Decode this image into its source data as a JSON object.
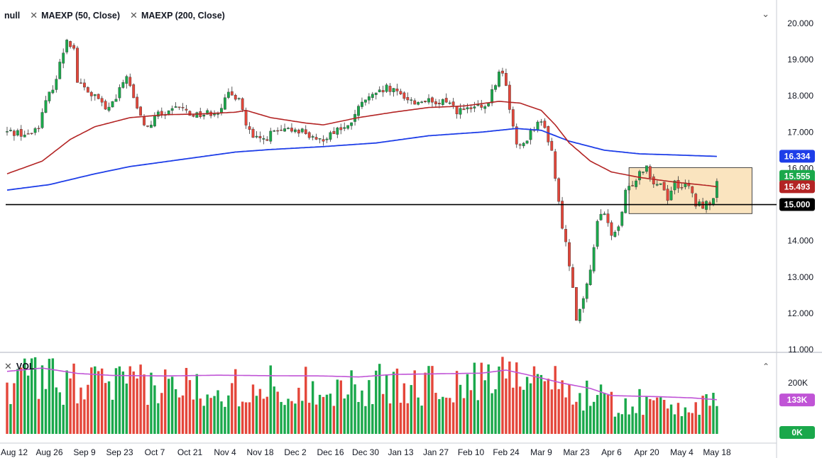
{
  "legend": {
    "items": [
      {
        "label": "null"
      },
      {
        "label": "MAEXP (50, Close)"
      },
      {
        "label": "MAEXP (200, Close)"
      }
    ],
    "volume_label": "VOL"
  },
  "icons": {
    "close": "close-icon",
    "collapse": "chevron-down-icon",
    "expand": "chevron-up-icon"
  },
  "colors": {
    "up": "#1aa84b",
    "down": "#e4463a",
    "ema50": "#b32424",
    "ema200": "#1e3ee8",
    "vol_ma": "#c054d6",
    "hline": "#000000",
    "box_fill": "#f9dfb4",
    "box_stroke": "#444444"
  },
  "chart_data": {
    "type": "candlestick",
    "price_axis": {
      "min": 11.0,
      "max": 20.0,
      "ticks": [
        "20.000",
        "19.000",
        "18.000",
        "17.000",
        "16.000",
        "15.000",
        "14.000",
        "13.000",
        "12.000",
        "11.000"
      ]
    },
    "time_axis": {
      "ticks": [
        "Aug 12",
        "Aug 26",
        "Sep 9",
        "Sep 23",
        "Oct 7",
        "Oct 21",
        "Nov 4",
        "Nov 18",
        "Dec 2",
        "Dec 16",
        "Dec 30",
        "Jan 13",
        "Jan 27",
        "Feb 10",
        "Feb 24",
        "Mar 9",
        "Mar 23",
        "Apr 6",
        "Apr 20",
        "May 4",
        "May 18"
      ]
    },
    "price_anchors": [
      [
        0,
        17.0
      ],
      [
        3,
        17.0
      ],
      [
        6,
        16.9
      ],
      [
        9,
        17.2
      ],
      [
        11,
        17.8
      ],
      [
        14,
        18.5
      ],
      [
        17,
        19.6
      ],
      [
        19,
        19.3
      ],
      [
        20,
        18.4
      ],
      [
        23,
        18.1
      ],
      [
        26,
        17.9
      ],
      [
        28,
        17.6
      ],
      [
        31,
        17.9
      ],
      [
        34,
        18.6
      ],
      [
        36,
        17.9
      ],
      [
        38,
        17.4
      ],
      [
        40,
        17.1
      ],
      [
        43,
        17.5
      ],
      [
        46,
        17.5
      ],
      [
        49,
        17.7
      ],
      [
        52,
        17.5
      ],
      [
        56,
        17.5
      ],
      [
        60,
        17.6
      ],
      [
        63,
        18.0
      ],
      [
        66,
        18.0
      ],
      [
        68,
        17.2
      ],
      [
        70,
        16.8
      ],
      [
        73,
        16.8
      ],
      [
        76,
        17.0
      ],
      [
        79,
        17.0
      ],
      [
        82,
        17.1
      ],
      [
        85,
        17.0
      ],
      [
        88,
        16.7
      ],
      [
        91,
        16.9
      ],
      [
        94,
        17.1
      ],
      [
        97,
        17.1
      ],
      [
        99,
        17.5
      ],
      [
        102,
        17.9
      ],
      [
        105,
        18.0
      ],
      [
        108,
        18.2
      ],
      [
        110,
        18.1
      ],
      [
        113,
        18.0
      ],
      [
        116,
        17.8
      ],
      [
        119,
        17.9
      ],
      [
        122,
        17.7
      ],
      [
        125,
        17.9
      ],
      [
        128,
        17.6
      ],
      [
        131,
        17.6
      ],
      [
        134,
        17.7
      ],
      [
        136,
        17.6
      ],
      [
        138,
        18.1
      ],
      [
        140,
        18.6
      ],
      [
        141,
        18.7
      ],
      [
        143,
        17.7
      ],
      [
        145,
        16.6
      ],
      [
        147,
        16.7
      ],
      [
        149,
        17.0
      ],
      [
        151,
        17.3
      ],
      [
        153,
        17.1
      ],
      [
        155,
        16.5
      ],
      [
        157,
        15.0
      ],
      [
        159,
        13.9
      ],
      [
        161,
        12.8
      ],
      [
        162,
        11.9
      ],
      [
        164,
        12.3
      ],
      [
        166,
        13.2
      ],
      [
        168,
        14.6
      ],
      [
        170,
        14.7
      ],
      [
        172,
        14.2
      ],
      [
        174,
        14.3
      ],
      [
        176,
        15.3
      ],
      [
        178,
        15.6
      ],
      [
        180,
        15.9
      ],
      [
        182,
        16.1
      ],
      [
        184,
        15.6
      ],
      [
        186,
        15.6
      ],
      [
        188,
        15.2
      ],
      [
        190,
        15.6
      ],
      [
        192,
        15.5
      ],
      [
        194,
        15.5
      ],
      [
        196,
        15.0
      ],
      [
        198,
        15.0
      ],
      [
        200,
        15.0
      ],
      [
        202,
        15.55
      ]
    ],
    "ema50_points": [
      [
        0,
        15.85
      ],
      [
        10,
        16.2
      ],
      [
        18,
        16.8
      ],
      [
        25,
        17.15
      ],
      [
        35,
        17.4
      ],
      [
        45,
        17.48
      ],
      [
        55,
        17.5
      ],
      [
        65,
        17.55
      ],
      [
        68,
        17.6
      ],
      [
        75,
        17.4
      ],
      [
        85,
        17.25
      ],
      [
        90,
        17.2
      ],
      [
        100,
        17.4
      ],
      [
        110,
        17.55
      ],
      [
        120,
        17.68
      ],
      [
        130,
        17.72
      ],
      [
        140,
        17.85
      ],
      [
        146,
        17.8
      ],
      [
        152,
        17.6
      ],
      [
        156,
        17.2
      ],
      [
        160,
        16.7
      ],
      [
        166,
        16.2
      ],
      [
        172,
        15.9
      ],
      [
        180,
        15.75
      ],
      [
        190,
        15.62
      ],
      [
        200,
        15.52
      ],
      [
        202,
        15.49
      ]
    ],
    "ema200_points": [
      [
        0,
        15.4
      ],
      [
        12,
        15.55
      ],
      [
        25,
        15.85
      ],
      [
        35,
        16.05
      ],
      [
        50,
        16.25
      ],
      [
        65,
        16.45
      ],
      [
        75,
        16.52
      ],
      [
        90,
        16.6
      ],
      [
        105,
        16.7
      ],
      [
        120,
        16.9
      ],
      [
        135,
        17.0
      ],
      [
        145,
        17.1
      ],
      [
        152,
        17.05
      ],
      [
        160,
        16.75
      ],
      [
        170,
        16.5
      ],
      [
        180,
        16.4
      ],
      [
        190,
        16.37
      ],
      [
        202,
        16.33
      ]
    ],
    "horizontal_line": 15.0,
    "range_box": {
      "from_index": 177,
      "to_index": 212,
      "price_low": 14.75,
      "price_high": 16.02
    },
    "price_badges": [
      {
        "label": "16.334",
        "value": 16.334,
        "color": "#1e3ee8"
      },
      {
        "label": "15.555",
        "value": 15.78,
        "color": "#1aa84b"
      },
      {
        "label": "15.493",
        "value": 15.493,
        "color": "#b32424"
      },
      {
        "label": "15.000",
        "value": 15.0,
        "color": "#000000"
      }
    ],
    "volume_axis": {
      "max": 300000,
      "ticks": [
        "200K"
      ]
    },
    "volume_badges": [
      {
        "label": "133K",
        "value": 133000,
        "color": "#c054d6"
      },
      {
        "label": "0K",
        "value": 0,
        "color": "#1aa84b"
      }
    ],
    "volume_ma_points": [
      [
        0,
        245000
      ],
      [
        10,
        258000
      ],
      [
        20,
        237000
      ],
      [
        30,
        229000
      ],
      [
        45,
        227000
      ],
      [
        60,
        230000
      ],
      [
        75,
        228000
      ],
      [
        90,
        227000
      ],
      [
        100,
        223000
      ],
      [
        110,
        233000
      ],
      [
        120,
        235000
      ],
      [
        135,
        238000
      ],
      [
        142,
        250000
      ],
      [
        148,
        232000
      ],
      [
        158,
        199000
      ],
      [
        166,
        178000
      ],
      [
        172,
        150000
      ],
      [
        185,
        146000
      ],
      [
        195,
        141000
      ],
      [
        202,
        134000
      ]
    ],
    "total_bars": 203,
    "seed": 42
  }
}
